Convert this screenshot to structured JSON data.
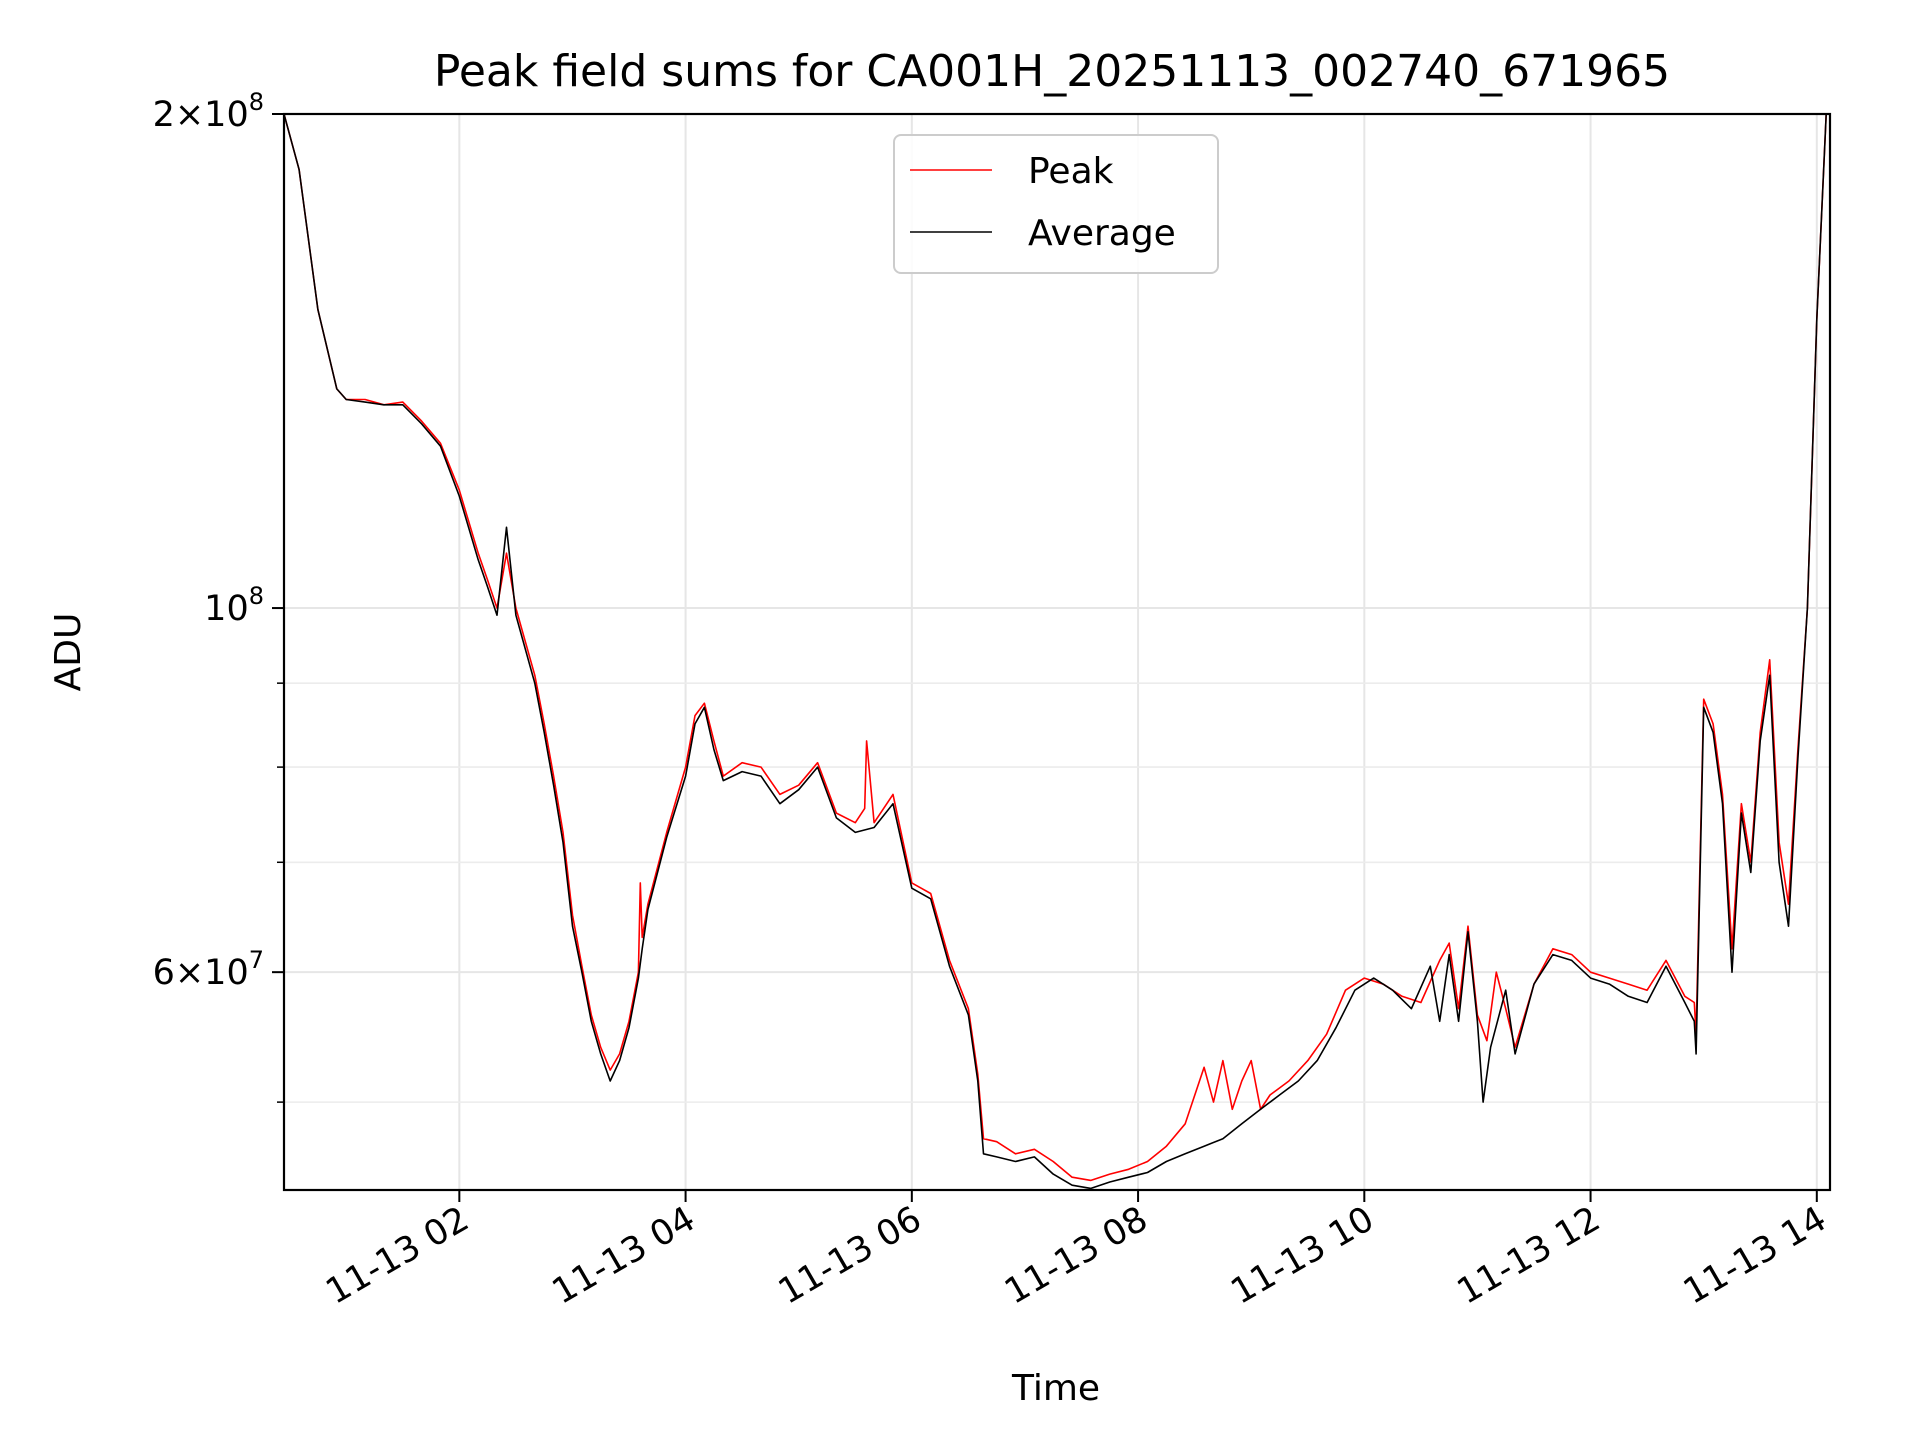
{
  "chart_data": {
    "type": "line",
    "title": "Peak field sums for CA001H_20251113_002740_671965",
    "xlabel": "Time",
    "ylabel": "ADU",
    "y_scale": "log",
    "ylim": [
      44200000,
      200000000
    ],
    "xlim": [
      "2025-11-13T00:27",
      "2025-11-13T14:07"
    ],
    "grid": true,
    "legend_position": "upper center",
    "x_ticks": [
      {
        "t": "2025-11-13T02:00",
        "label": "11-13 02"
      },
      {
        "t": "2025-11-13T04:00",
        "label": "11-13 04"
      },
      {
        "t": "2025-11-13T06:00",
        "label": "11-13 06"
      },
      {
        "t": "2025-11-13T08:00",
        "label": "11-13 08"
      },
      {
        "t": "2025-11-13T10:00",
        "label": "11-13 10"
      },
      {
        "t": "2025-11-13T12:00",
        "label": "11-13 12"
      },
      {
        "t": "2025-11-13T14:00",
        "label": "11-13 14"
      }
    ],
    "y_major_ticks": [
      {
        "value": 200000000,
        "mant": "2",
        "exp": "8"
      },
      {
        "value": 100000000,
        "mant": "",
        "exp": "8"
      },
      {
        "value": 60000000,
        "mant": "6",
        "exp": "7"
      }
    ],
    "y_minor_ticks": [
      50000000,
      70000000,
      80000000,
      90000000
    ],
    "series": [
      {
        "name": "Peak",
        "color": "#ff0000",
        "x": [
          "2025-11-13T00:27",
          "2025-11-13T00:35",
          "2025-11-13T00:45",
          "2025-11-13T00:55",
          "2025-11-13T01:00",
          "2025-11-13T01:10",
          "2025-11-13T01:20",
          "2025-11-13T01:30",
          "2025-11-13T01:40",
          "2025-11-13T01:50",
          "2025-11-13T02:00",
          "2025-11-13T02:10",
          "2025-11-13T02:15",
          "2025-11-13T02:20",
          "2025-11-13T02:25",
          "2025-11-13T02:30",
          "2025-11-13T02:40",
          "2025-11-13T02:45",
          "2025-11-13T02:50",
          "2025-11-13T02:55",
          "2025-11-13T03:00",
          "2025-11-13T03:05",
          "2025-11-13T03:10",
          "2025-11-13T03:15",
          "2025-11-13T03:20",
          "2025-11-13T03:25",
          "2025-11-13T03:30",
          "2025-11-13T03:35",
          "2025-11-13T03:36",
          "2025-11-13T03:37",
          "2025-11-13T03:40",
          "2025-11-13T03:50",
          "2025-11-13T04:00",
          "2025-11-13T04:05",
          "2025-11-13T04:10",
          "2025-11-13T04:15",
          "2025-11-13T04:20",
          "2025-11-13T04:30",
          "2025-11-13T04:40",
          "2025-11-13T04:50",
          "2025-11-13T05:00",
          "2025-11-13T05:10",
          "2025-11-13T05:20",
          "2025-11-13T05:30",
          "2025-11-13T05:35",
          "2025-11-13T05:36",
          "2025-11-13T05:40",
          "2025-11-13T05:50",
          "2025-11-13T06:00",
          "2025-11-13T06:10",
          "2025-11-13T06:20",
          "2025-11-13T06:30",
          "2025-11-13T06:35",
          "2025-11-13T06:38",
          "2025-11-13T06:45",
          "2025-11-13T06:55",
          "2025-11-13T07:05",
          "2025-11-13T07:15",
          "2025-11-13T07:25",
          "2025-11-13T07:35",
          "2025-11-13T07:45",
          "2025-11-13T07:55",
          "2025-11-13T08:05",
          "2025-11-13T08:15",
          "2025-11-13T08:25",
          "2025-11-13T08:35",
          "2025-11-13T08:40",
          "2025-11-13T08:45",
          "2025-11-13T08:50",
          "2025-11-13T08:55",
          "2025-11-13T09:00",
          "2025-11-13T09:05",
          "2025-11-13T09:10",
          "2025-11-13T09:15",
          "2025-11-13T09:20",
          "2025-11-13T09:30",
          "2025-11-13T09:40",
          "2025-11-13T09:50",
          "2025-11-13T10:00",
          "2025-11-13T10:10",
          "2025-11-13T10:20",
          "2025-11-13T10:30",
          "2025-11-13T10:40",
          "2025-11-13T10:45",
          "2025-11-13T10:50",
          "2025-11-13T10:55",
          "2025-11-13T11:00",
          "2025-11-13T11:05",
          "2025-11-13T11:10",
          "2025-11-13T11:15",
          "2025-11-13T11:20",
          "2025-11-13T11:30",
          "2025-11-13T11:40",
          "2025-11-13T11:50",
          "2025-11-13T12:00",
          "2025-11-13T12:10",
          "2025-11-13T12:20",
          "2025-11-13T12:30",
          "2025-11-13T12:40",
          "2025-11-13T12:50",
          "2025-11-13T12:55",
          "2025-11-13T12:56",
          "2025-11-13T13:00",
          "2025-11-13T13:05",
          "2025-11-13T13:10",
          "2025-11-13T13:15",
          "2025-11-13T13:20",
          "2025-11-13T13:25",
          "2025-11-13T13:30",
          "2025-11-13T13:35",
          "2025-11-13T13:40",
          "2025-11-13T13:45",
          "2025-11-13T13:50",
          "2025-11-13T13:55",
          "2025-11-13T14:00",
          "2025-11-13T14:05",
          "2025-11-13T14:07"
        ],
        "y": [
          200000000,
          185000000,
          152000000,
          136000000,
          134000000,
          134000000,
          133000000,
          133500000,
          130000000,
          126000000,
          118000000,
          108000000,
          104000000,
          100000000,
          108000000,
          100000000,
          91000000,
          85000000,
          79000000,
          73000000,
          65000000,
          60500000,
          56500000,
          54000000,
          52300000,
          53500000,
          56000000,
          60000000,
          68000000,
          63000000,
          66000000,
          73000000,
          80000000,
          86000000,
          87500000,
          83000000,
          79000000,
          80500000,
          80000000,
          77000000,
          78000000,
          80500000,
          75000000,
          74000000,
          75500000,
          83000000,
          74000000,
          77000000,
          68000000,
          67000000,
          61000000,
          57000000,
          52000000,
          47500000,
          47300000,
          46500000,
          46800000,
          46000000,
          45000000,
          44800000,
          45200000,
          45500000,
          46000000,
          47000000,
          48500000,
          52500000,
          50000000,
          53000000,
          49500000,
          51500000,
          53000000,
          49500000,
          50500000,
          51000000,
          51500000,
          53000000,
          55000000,
          58500000,
          59500000,
          59000000,
          58000000,
          57500000,
          61000000,
          62500000,
          57000000,
          64000000,
          56500000,
          54500000,
          60000000,
          57000000,
          54000000,
          59000000,
          62000000,
          61500000,
          60000000,
          59500000,
          59000000,
          58500000,
          61000000,
          58000000,
          57500000,
          55000000,
          88000000,
          85000000,
          77000000,
          62000000,
          76000000,
          70000000,
          84000000,
          93000000,
          72000000,
          66000000,
          82000000,
          100000000,
          150000000,
          200000000,
          200000000
        ]
      },
      {
        "name": "Average",
        "color": "#000000",
        "x": [
          "2025-11-13T00:27",
          "2025-11-13T00:35",
          "2025-11-13T00:45",
          "2025-11-13T00:55",
          "2025-11-13T01:00",
          "2025-11-13T01:10",
          "2025-11-13T01:20",
          "2025-11-13T01:30",
          "2025-11-13T01:40",
          "2025-11-13T01:50",
          "2025-11-13T02:00",
          "2025-11-13T02:10",
          "2025-11-13T02:15",
          "2025-11-13T02:20",
          "2025-11-13T02:25",
          "2025-11-13T02:30",
          "2025-11-13T02:40",
          "2025-11-13T02:45",
          "2025-11-13T02:50",
          "2025-11-13T02:55",
          "2025-11-13T03:00",
          "2025-11-13T03:05",
          "2025-11-13T03:10",
          "2025-11-13T03:15",
          "2025-11-13T03:20",
          "2025-11-13T03:25",
          "2025-11-13T03:30",
          "2025-11-13T03:35",
          "2025-11-13T03:37",
          "2025-11-13T03:40",
          "2025-11-13T03:50",
          "2025-11-13T04:00",
          "2025-11-13T04:05",
          "2025-11-13T04:10",
          "2025-11-13T04:15",
          "2025-11-13T04:20",
          "2025-11-13T04:30",
          "2025-11-13T04:40",
          "2025-11-13T04:50",
          "2025-11-13T05:00",
          "2025-11-13T05:10",
          "2025-11-13T05:20",
          "2025-11-13T05:30",
          "2025-11-13T05:40",
          "2025-11-13T05:50",
          "2025-11-13T06:00",
          "2025-11-13T06:10",
          "2025-11-13T06:20",
          "2025-11-13T06:30",
          "2025-11-13T06:35",
          "2025-11-13T06:38",
          "2025-11-13T06:45",
          "2025-11-13T06:55",
          "2025-11-13T07:05",
          "2025-11-13T07:15",
          "2025-11-13T07:25",
          "2025-11-13T07:35",
          "2025-11-13T07:45",
          "2025-11-13T07:55",
          "2025-11-13T08:05",
          "2025-11-13T08:15",
          "2025-11-13T08:25",
          "2025-11-13T08:35",
          "2025-11-13T08:45",
          "2025-11-13T08:55",
          "2025-11-13T09:05",
          "2025-11-13T09:15",
          "2025-11-13T09:25",
          "2025-11-13T09:35",
          "2025-11-13T09:45",
          "2025-11-13T09:55",
          "2025-11-13T10:05",
          "2025-11-13T10:15",
          "2025-11-13T10:25",
          "2025-11-13T10:35",
          "2025-11-13T10:40",
          "2025-11-13T10:45",
          "2025-11-13T10:50",
          "2025-11-13T10:55",
          "2025-11-13T11:00",
          "2025-11-13T11:03",
          "2025-11-13T11:07",
          "2025-11-13T11:15",
          "2025-11-13T11:20",
          "2025-11-13T11:30",
          "2025-11-13T11:40",
          "2025-11-13T11:50",
          "2025-11-13T12:00",
          "2025-11-13T12:10",
          "2025-11-13T12:20",
          "2025-11-13T12:30",
          "2025-11-13T12:40",
          "2025-11-13T12:50",
          "2025-11-13T12:55",
          "2025-11-13T12:56",
          "2025-11-13T13:00",
          "2025-11-13T13:05",
          "2025-11-13T13:10",
          "2025-11-13T13:15",
          "2025-11-13T13:20",
          "2025-11-13T13:25",
          "2025-11-13T13:30",
          "2025-11-13T13:35",
          "2025-11-13T13:40",
          "2025-11-13T13:45",
          "2025-11-13T13:50",
          "2025-11-13T13:55",
          "2025-11-13T14:00",
          "2025-11-13T14:05",
          "2025-11-13T14:07"
        ],
        "y": [
          200000000,
          185000000,
          152000000,
          136000000,
          134000000,
          133500000,
          133000000,
          133000000,
          129500000,
          125500000,
          117000000,
          107000000,
          103000000,
          99000000,
          112000000,
          99000000,
          90000000,
          84000000,
          78000000,
          72000000,
          64000000,
          60000000,
          56000000,
          53500000,
          51500000,
          53000000,
          55500000,
          59500000,
          62000000,
          65500000,
          72500000,
          79000000,
          85000000,
          87000000,
          82000000,
          78500000,
          79500000,
          79000000,
          76000000,
          77500000,
          80000000,
          74500000,
          73000000,
          73500000,
          76000000,
          67500000,
          66500000,
          60500000,
          56500000,
          51500000,
          46500000,
          46300000,
          46000000,
          46300000,
          45200000,
          44500000,
          44300000,
          44700000,
          45000000,
          45300000,
          46000000,
          46500000,
          47000000,
          47500000,
          48500000,
          49500000,
          50500000,
          51500000,
          53000000,
          55500000,
          58500000,
          59500000,
          58500000,
          57000000,
          60500000,
          56000000,
          61500000,
          56000000,
          63500000,
          56000000,
          50000000,
          54000000,
          58500000,
          53500000,
          59000000,
          61500000,
          61000000,
          59500000,
          59000000,
          58000000,
          57500000,
          60500000,
          57500000,
          56000000,
          53500000,
          87000000,
          84000000,
          76000000,
          60000000,
          75000000,
          69000000,
          83000000,
          91000000,
          70000000,
          64000000,
          81000000,
          100000000,
          150000000,
          200000000,
          200000000
        ]
      }
    ]
  }
}
